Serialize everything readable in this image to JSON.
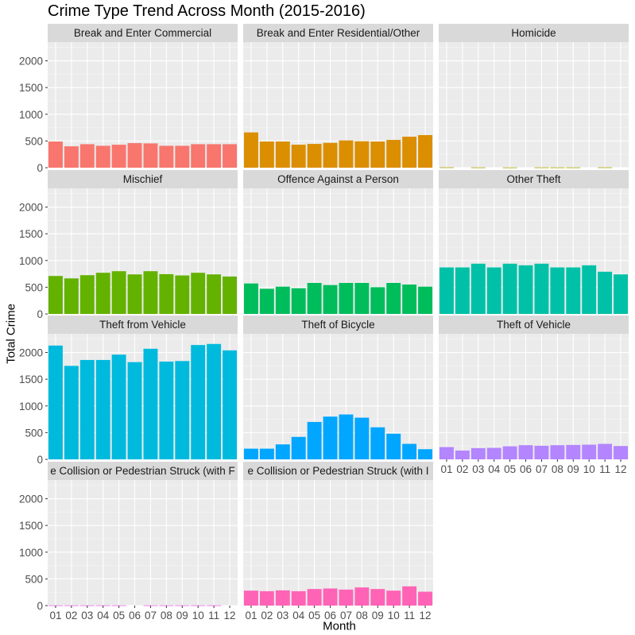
{
  "chart_data": {
    "type": "bar",
    "title": "Crime Type Trend Across Month (2015-2016)",
    "xlabel": "Month",
    "ylabel": "Total Crime",
    "categories": [
      "01",
      "02",
      "03",
      "04",
      "05",
      "06",
      "07",
      "08",
      "09",
      "10",
      "11",
      "12"
    ],
    "ylim": [
      0,
      2350
    ],
    "y_ticks": [
      "0",
      "500",
      "1000",
      "1500",
      "2000"
    ],
    "grid": true,
    "legend": "none",
    "facets": [
      {
        "name": "Break and Enter Commercial",
        "color": "#F8766D",
        "values": [
          490,
          400,
          440,
          410,
          430,
          460,
          455,
          410,
          410,
          440,
          440,
          440
        ]
      },
      {
        "name": "Break and Enter Residential/Other",
        "color": "#DB8E00",
        "values": [
          660,
          490,
          490,
          430,
          445,
          465,
          510,
          495,
          490,
          520,
          580,
          610
        ]
      },
      {
        "name": "Homicide",
        "color": "#AEA200",
        "values": [
          6,
          0,
          5,
          0,
          4,
          0,
          5,
          5,
          5,
          0,
          6,
          0
        ]
      },
      {
        "name": "Mischief",
        "color": "#64B200",
        "values": [
          710,
          665,
          725,
          770,
          800,
          740,
          800,
          745,
          720,
          770,
          740,
          700
        ]
      },
      {
        "name": "Offence Against a Person",
        "color": "#00BD5C",
        "values": [
          570,
          470,
          510,
          480,
          580,
          540,
          580,
          580,
          500,
          580,
          550,
          510
        ]
      },
      {
        "name": "Other Theft",
        "color": "#00C1A7",
        "values": [
          870,
          870,
          940,
          870,
          940,
          910,
          940,
          870,
          870,
          910,
          790,
          740
        ]
      },
      {
        "name": "Theft from Vehicle",
        "color": "#00BADE",
        "values": [
          2130,
          1750,
          1860,
          1860,
          1960,
          1820,
          2070,
          1830,
          1840,
          2140,
          2160,
          2040
        ]
      },
      {
        "name": "Theft of Bicycle",
        "color": "#00A6FF",
        "values": [
          200,
          200,
          280,
          420,
          700,
          800,
          840,
          780,
          600,
          480,
          290,
          190
        ]
      },
      {
        "name": "Theft of Vehicle",
        "color": "#B385FF",
        "values": [
          230,
          165,
          210,
          215,
          245,
          265,
          255,
          265,
          270,
          275,
          290,
          250
        ]
      },
      {
        "name": "e Collision or Pedestrian Struck (with F",
        "color": "#EF67EB",
        "values": [
          5,
          5,
          5,
          5,
          5,
          0,
          5,
          5,
          5,
          5,
          5,
          0
        ]
      },
      {
        "name": "e Collision or Pedestrian Struck (with I",
        "color": "#FF63B6",
        "values": [
          280,
          270,
          285,
          270,
          310,
          320,
          300,
          340,
          310,
          280,
          360,
          260
        ]
      }
    ]
  }
}
